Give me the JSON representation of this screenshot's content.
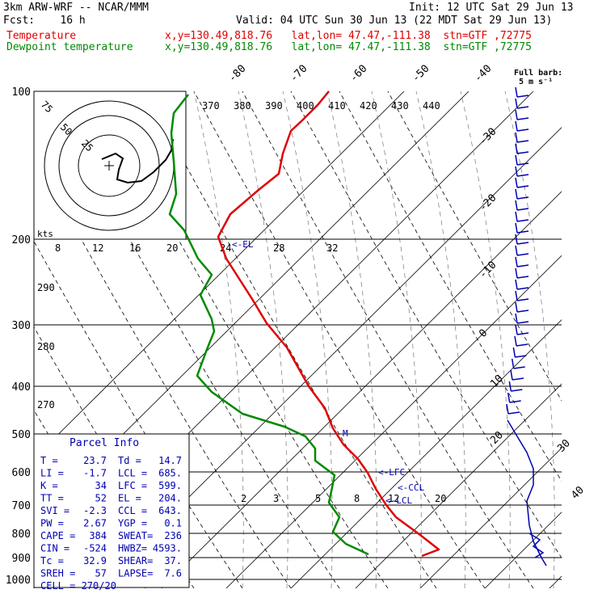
{
  "header": {
    "model": "3km ARW-WRF -- NCAR/MMM",
    "init": "Init: 12 UTC Sat 29 Jun 13",
    "fcst": "Fcst:    16 h",
    "valid": "Valid: 04 UTC Sun 30 Jun 13 (22 MDT Sat 29 Jun 13)",
    "temp_label": "Temperature",
    "temp_loc": "x,y=130.49,818.76   lat,lon= 47.47,-111.38  stn=GTF ,72775",
    "dew_label": "Dewpoint temperature",
    "dew_loc": "x,y=130.49,818.76   lat,lon= 47.47,-111.38  stn=GTF ,72775"
  },
  "colors": {
    "temperature": "#e00000",
    "dewpoint": "#008a00",
    "info": "#0000b0",
    "barb": "#0000b0"
  },
  "chart_data": {
    "type": "line",
    "title": "",
    "xlabel": "",
    "ylabel": "",
    "pressure_levels": [
      "100",
      "200",
      "300",
      "400",
      "500",
      "600",
      "700",
      "800",
      "900",
      "1000"
    ],
    "isotherm_labels": [
      "-80",
      "-70",
      "-60",
      "-50",
      "-40",
      "-30",
      "-20",
      "-10",
      "0",
      "10",
      "20",
      "30",
      "40"
    ],
    "theta_labels": [
      "370",
      "380",
      "390",
      "400",
      "410",
      "420",
      "430",
      "440"
    ],
    "hodo_speed_labels": [
      "8",
      "12",
      "16",
      "20",
      "24",
      "28",
      "32"
    ],
    "hodo_ring_labels": [
      "25",
      "50",
      "75"
    ],
    "hodo_units": "kts",
    "hodo_left_labels": [
      "290",
      "280",
      "270"
    ],
    "mixing_ratio_labels": [
      "2",
      "3",
      "5",
      "8",
      "12",
      "20"
    ],
    "level_markers": {
      "el": "<-EL",
      "lfc": "<-LFC",
      "ccl": "<-CCL",
      "lcl": "<-LCL",
      "m": "M"
    },
    "barb_legend": {
      "line1": "Full barb:",
      "line2": "5 m s⁻¹"
    },
    "series": [
      {
        "name": "Temperature",
        "points": [
          [
            407,
            113
          ],
          [
            393,
            130
          ],
          [
            375,
            148
          ],
          [
            360,
            162
          ],
          [
            350,
            190
          ],
          [
            345,
            215
          ],
          [
            320,
            235
          ],
          [
            285,
            265
          ],
          [
            270,
            293
          ],
          [
            280,
            320
          ],
          [
            296,
            345
          ],
          [
            312,
            370
          ],
          [
            330,
            400
          ],
          [
            355,
            430
          ],
          [
            382,
            478
          ],
          [
            402,
            505
          ],
          [
            412,
            530
          ],
          [
            425,
            550
          ],
          [
            443,
            568
          ],
          [
            455,
            585
          ],
          [
            465,
            605
          ],
          [
            478,
            625
          ],
          [
            490,
            640
          ],
          [
            520,
            662
          ],
          [
            543,
            680
          ],
          [
            522,
            688
          ]
        ]
      },
      {
        "name": "Dewpoint temperature",
        "points": [
          [
            233,
            117
          ],
          [
            215,
            140
          ],
          [
            212,
            165
          ],
          [
            215,
            200
          ],
          [
            218,
            240
          ],
          [
            210,
            265
          ],
          [
            228,
            285
          ],
          [
            245,
            320
          ],
          [
            262,
            340
          ],
          [
            248,
            365
          ],
          [
            262,
            395
          ],
          [
            265,
            410
          ],
          [
            255,
            435
          ],
          [
            244,
            465
          ],
          [
            262,
            485
          ],
          [
            300,
            512
          ],
          [
            352,
            528
          ],
          [
            378,
            540
          ],
          [
            390,
            555
          ],
          [
            390,
            570
          ],
          [
            414,
            588
          ],
          [
            410,
            608
          ],
          [
            407,
            622
          ],
          [
            420,
            640
          ],
          [
            412,
            658
          ],
          [
            428,
            673
          ],
          [
            456,
            686
          ]
        ]
      }
    ]
  },
  "parcel_info": {
    "title": "Parcel Info",
    "rows": [
      [
        "T  =",
        "23.7",
        "Td =",
        "14.7"
      ],
      [
        "LI =",
        "-1.7",
        "LCL =",
        "685."
      ],
      [
        "K  =",
        "34",
        "LFC =",
        "599."
      ],
      [
        "TT =",
        "52",
        "EL  =",
        "204."
      ],
      [
        "SVI =",
        "-2.3",
        "CCL =",
        "643."
      ],
      [
        "PW =",
        "2.67",
        "YGP =",
        "0.1"
      ],
      [
        "CAPE =",
        "384",
        "SWEAT=",
        "236"
      ],
      [
        "CIN =",
        "-524",
        "HWBZ=",
        "4593."
      ],
      [
        "Tc =",
        "32.9",
        "SHEAR=",
        "37."
      ],
      [
        "SREH =",
        "57",
        "LAPSE=",
        "7.6"
      ],
      [
        "CELL = 270/20",
        "",
        "",
        ""
      ]
    ]
  }
}
